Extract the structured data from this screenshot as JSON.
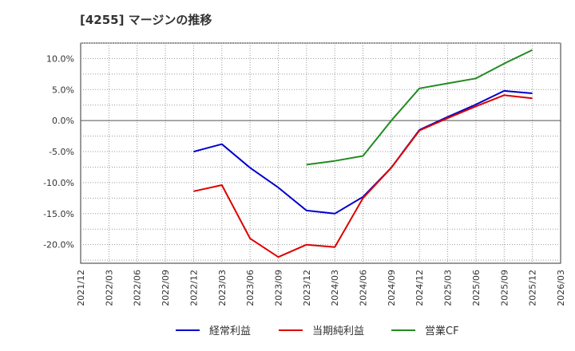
{
  "chart_data": {
    "type": "line",
    "title": "[4255]  マージンの推移",
    "x": [
      "2021/12",
      "2022/03",
      "2022/06",
      "2022/09",
      "2022/12",
      "2023/03",
      "2023/06",
      "2023/09",
      "2023/12",
      "2024/03",
      "2024/06",
      "2024/09",
      "2024/12",
      "2025/03",
      "2025/06",
      "2025/09",
      "2025/12",
      "2026/03"
    ],
    "ylim": [
      -23,
      12.5
    ],
    "yticks": [
      10,
      5,
      0,
      -5,
      -10,
      -15,
      -20
    ],
    "ytick_labels": [
      "10.0%",
      "5.0%",
      "0.0%",
      "-5.0%",
      "-10.0%",
      "-15.0%",
      "-20.0%"
    ],
    "grid": true,
    "legend_position": "bottom",
    "series": [
      {
        "name": "経常利益",
        "color": "#0000cc",
        "values": [
          null,
          null,
          null,
          null,
          -5.0,
          -3.8,
          -7.6,
          -10.8,
          -14.5,
          -15.0,
          -12.3,
          -7.6,
          -1.5,
          0.6,
          2.6,
          4.8,
          4.4,
          null
        ]
      },
      {
        "name": "当期純利益",
        "color": "#dd0000",
        "values": [
          null,
          null,
          null,
          null,
          -11.4,
          -10.4,
          -19.0,
          -22.0,
          -20.0,
          -20.4,
          -12.5,
          -7.6,
          -1.6,
          0.4,
          2.3,
          4.1,
          3.6,
          null
        ]
      },
      {
        "name": "営業CF",
        "color": "#228b22",
        "values": [
          null,
          null,
          null,
          null,
          null,
          null,
          null,
          null,
          -7.1,
          -6.5,
          -5.7,
          0.0,
          5.2,
          6.0,
          6.8,
          9.2,
          11.4,
          null
        ]
      }
    ]
  }
}
